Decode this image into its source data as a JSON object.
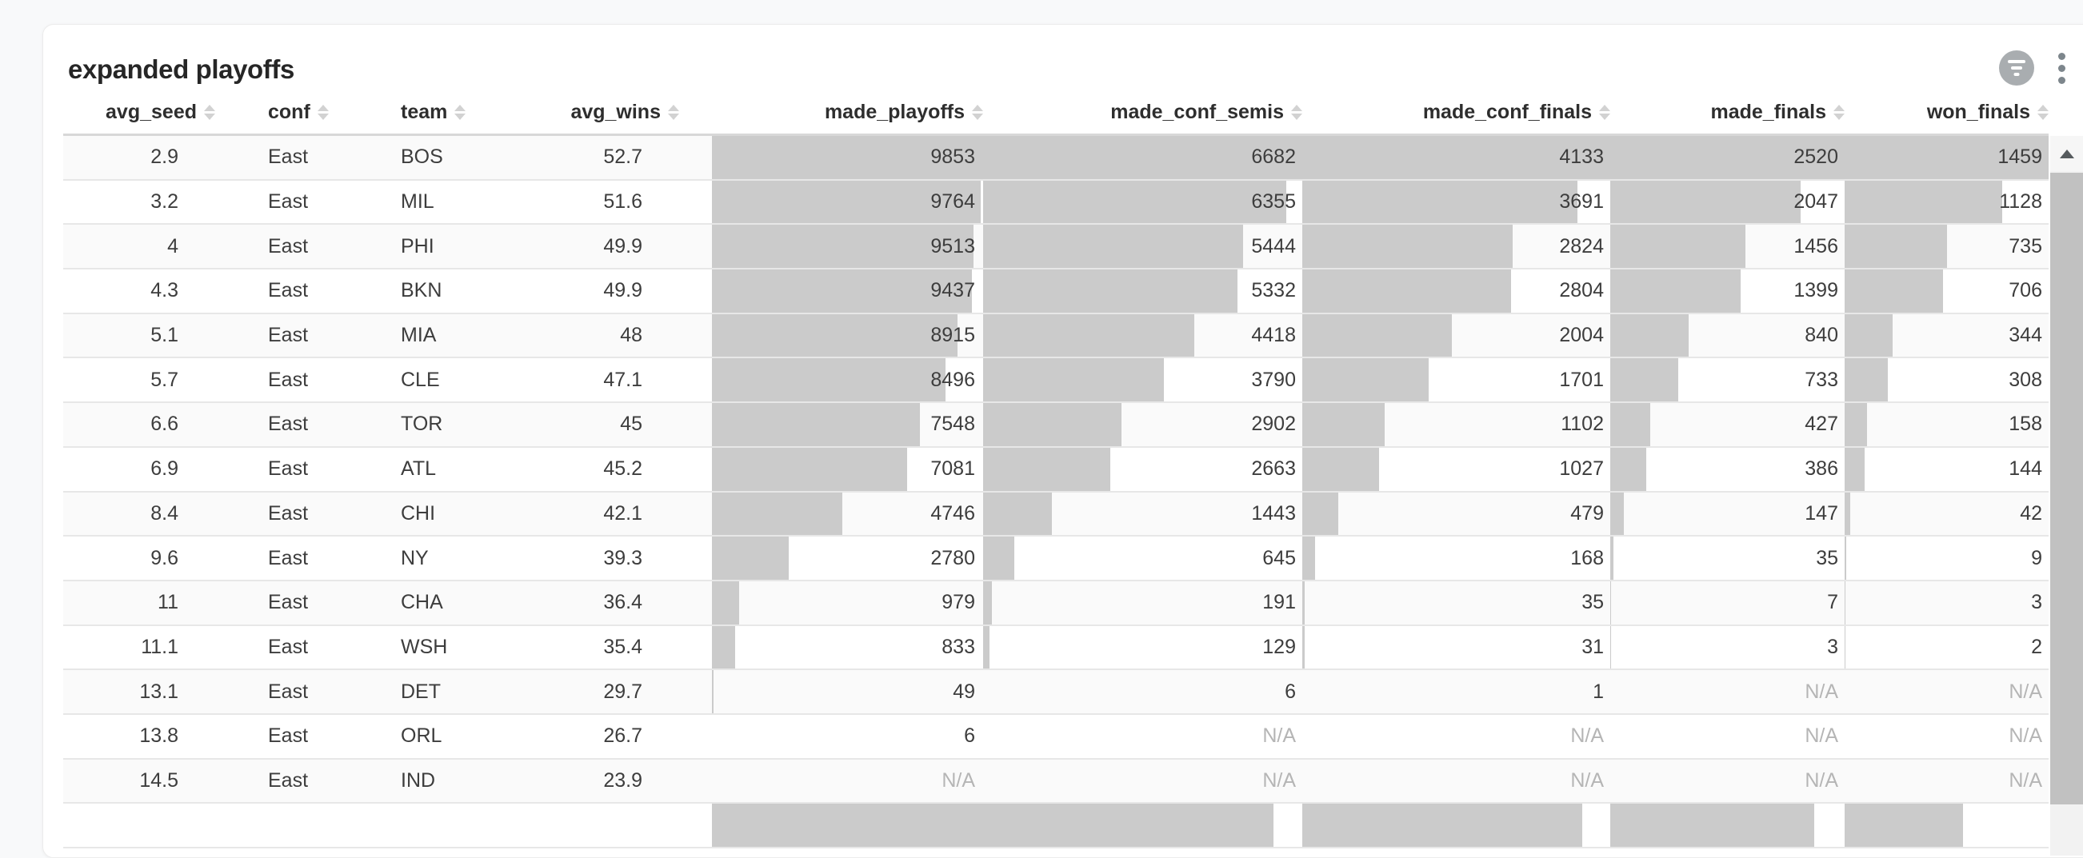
{
  "card": {
    "title": "expanded playoffs"
  },
  "toolbar": {
    "filter_button": {
      "icon": "filter-circle-icon"
    },
    "menu_button": {
      "icon": "kebab-menu-icon"
    }
  },
  "table": {
    "na_label": "N/A",
    "columns": [
      {
        "label": "avg_seed",
        "type": "number"
      },
      {
        "label": "conf",
        "type": "text"
      },
      {
        "label": "team",
        "type": "text"
      },
      {
        "label": "avg_wins",
        "type": "number"
      },
      {
        "label": "made_playoffs",
        "type": "bar",
        "max": 9853
      },
      {
        "label": "made_conf_semis",
        "type": "bar",
        "max": 6682
      },
      {
        "label": "made_conf_finals",
        "type": "bar",
        "max": 4133
      },
      {
        "label": "made_finals",
        "type": "bar",
        "max": 2520
      },
      {
        "label": "won_finals",
        "type": "bar",
        "max": 1459
      }
    ],
    "rows": [
      [
        "2.9",
        "East",
        "BOS",
        "52.7",
        "9853",
        "6682",
        "4133",
        "2520",
        "1459"
      ],
      [
        "3.2",
        "East",
        "MIL",
        "51.6",
        "9764",
        "6355",
        "3691",
        "2047",
        "1128"
      ],
      [
        "4",
        "East",
        "PHI",
        "49.9",
        "9513",
        "5444",
        "2824",
        "1456",
        "735"
      ],
      [
        "4.3",
        "East",
        "BKN",
        "49.9",
        "9437",
        "5332",
        "2804",
        "1399",
        "706"
      ],
      [
        "5.1",
        "East",
        "MIA",
        "48",
        "8915",
        "4418",
        "2004",
        "840",
        "344"
      ],
      [
        "5.7",
        "East",
        "CLE",
        "47.1",
        "8496",
        "3790",
        "1701",
        "733",
        "308"
      ],
      [
        "6.6",
        "East",
        "TOR",
        "45",
        "7548",
        "2902",
        "1102",
        "427",
        "158"
      ],
      [
        "6.9",
        "East",
        "ATL",
        "45.2",
        "7081",
        "2663",
        "1027",
        "386",
        "144"
      ],
      [
        "8.4",
        "East",
        "CHI",
        "42.1",
        "4746",
        "1443",
        "479",
        "147",
        "42"
      ],
      [
        "9.6",
        "East",
        "NY",
        "39.3",
        "2780",
        "645",
        "168",
        "35",
        "9"
      ],
      [
        "11",
        "East",
        "CHA",
        "36.4",
        "979",
        "191",
        "35",
        "7",
        "3"
      ],
      [
        "11.1",
        "East",
        "WSH",
        "35.4",
        "833",
        "129",
        "31",
        "3",
        "2"
      ],
      [
        "13.1",
        "East",
        "DET",
        "29.7",
        "49",
        "6",
        "1",
        "N/A",
        "N/A"
      ],
      [
        "13.8",
        "East",
        "ORL",
        "26.7",
        "6",
        "N/A",
        "N/A",
        "N/A",
        "N/A"
      ],
      [
        "14.5",
        "East",
        "IND",
        "23.9",
        "N/A",
        "N/A",
        "N/A",
        "N/A",
        "N/A"
      ]
    ],
    "partial_next_row_bar_fractions": [
      1,
      0.91,
      0.91,
      0.87,
      0.58
    ]
  },
  "colors": {
    "bar": "#cbcbcb",
    "row_stripe": "#fafafa",
    "na_text": "#b5b5b5",
    "filter_circle": "#a9adb0",
    "scroll_thumb": "#c1c1c1"
  }
}
